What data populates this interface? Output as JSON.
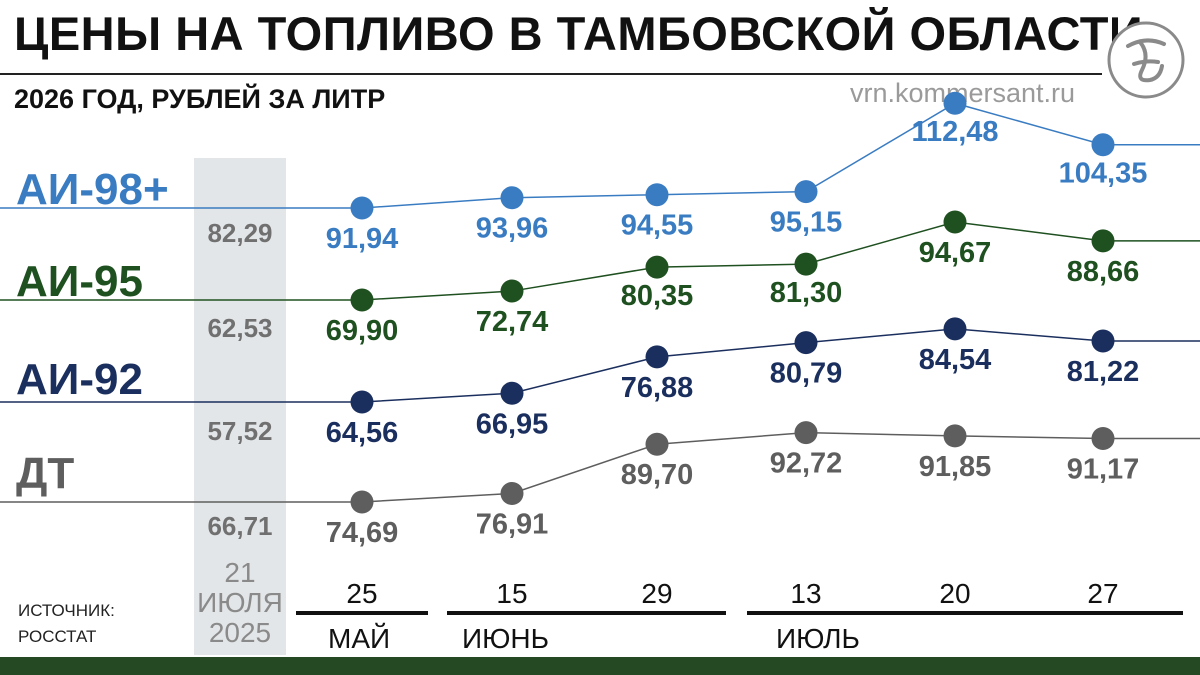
{
  "title": "ЦЕНЫ НА ТОПЛИВО В ТАМБОВСКОЙ ОБЛАСТИ",
  "subtitle": "2026 ГОД, РУБЛЕЙ ЗА ЛИТР",
  "website": "vrn.kommersant.ru",
  "source": {
    "line1": "ИСТОЧНИК:",
    "line2": "РОССТАТ"
  },
  "colors": {
    "ai98": "#3a7cc2",
    "ai95": "#1f5020",
    "ai92": "#1b2f5e",
    "dt": "#5e5e5e",
    "baseline_text": "#707070",
    "bottom_bar": "#254a23",
    "baseline_column": "#e3e6e8"
  },
  "chart_data": {
    "type": "line",
    "baseline": {
      "label_lines": [
        "21",
        "ИЮЛЯ",
        "2025"
      ]
    },
    "x_labels": [
      "25",
      "15",
      "29",
      "13",
      "20",
      "27"
    ],
    "months": [
      "МАЙ",
      "ИЮНЬ",
      "ИЮЛЬ"
    ],
    "series": [
      {
        "name": "АИ-98+",
        "baseline_value": "82,29",
        "value_labels": [
          "91,94",
          "93,96",
          "94,55",
          "95,15",
          "112,48",
          "104,35"
        ],
        "values": [
          91.94,
          93.96,
          94.55,
          95.15,
          112.48,
          104.35
        ]
      },
      {
        "name": "АИ-95",
        "baseline_value": "62,53",
        "value_labels": [
          "69,90",
          "72,74",
          "80,35",
          "81,30",
          "94,67",
          "88,66"
        ],
        "values": [
          69.9,
          72.74,
          80.35,
          81.3,
          94.67,
          88.66
        ]
      },
      {
        "name": "АИ-92",
        "baseline_value": "57,52",
        "value_labels": [
          "64,56",
          "66,95",
          "76,88",
          "80,79",
          "84,54",
          "81,22"
        ],
        "values": [
          64.56,
          66.95,
          76.88,
          80.79,
          84.54,
          81.22
        ]
      },
      {
        "name": "ДТ",
        "baseline_value": "66,71",
        "value_labels": [
          "74,69",
          "76,91",
          "89,70",
          "92,72",
          "91,85",
          "91,17"
        ],
        "values": [
          74.69,
          76.91,
          89.7,
          92.72,
          91.85,
          91.17
        ]
      }
    ]
  }
}
